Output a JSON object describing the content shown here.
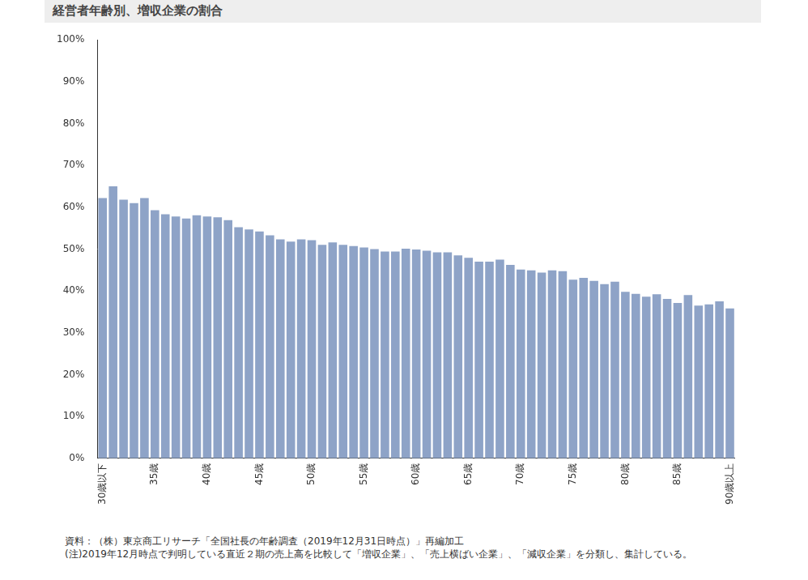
{
  "chart_data": {
    "type": "bar",
    "title": "経営者年齢別、増収企業の割合",
    "categories": [
      "30歳以下",
      null,
      null,
      null,
      null,
      "35歳",
      null,
      null,
      null,
      null,
      "40歳",
      null,
      null,
      null,
      null,
      "45歳",
      null,
      null,
      null,
      null,
      "50歳",
      null,
      null,
      null,
      null,
      "55歳",
      null,
      null,
      null,
      null,
      "60歳",
      null,
      null,
      null,
      null,
      "65歳",
      null,
      null,
      null,
      null,
      "70歳",
      null,
      null,
      null,
      null,
      "75歳",
      null,
      null,
      null,
      null,
      "80歳",
      null,
      null,
      null,
      null,
      "85歳",
      null,
      null,
      null,
      null,
      "90歳以上"
    ],
    "values": [
      62.2,
      65,
      61.8,
      61,
      62.2,
      59.3,
      58.3,
      57.8,
      57.3,
      58.1,
      57.8,
      57.6,
      56.9,
      55.2,
      54.7,
      54.2,
      53.3,
      52.3,
      51.8,
      52.3,
      52.1,
      51,
      51.6,
      51,
      50.7,
      50.4,
      50,
      49.4,
      49.4,
      50.1,
      49.9,
      49.6,
      49.2,
      49.2,
      48.5,
      47.9,
      47,
      47,
      47.5,
      46.2,
      45.1,
      44.9,
      44.4,
      44.9,
      44.7,
      42.7,
      43.1,
      42.4,
      41.6,
      42.2,
      39.8,
      39.3,
      38.6,
      39.2,
      38.1,
      37.1,
      39,
      36.5,
      36.8,
      37.5,
      35.8
    ],
    "color": "#8ea3c7",
    "ylim": [
      0,
      100
    ],
    "yticks": [
      {
        "value": 0,
        "label": "0%"
      },
      {
        "value": 10,
        "label": "10%"
      },
      {
        "value": 20,
        "label": "20%"
      },
      {
        "value": 30,
        "label": "30%"
      },
      {
        "value": 40,
        "label": "40%"
      },
      {
        "value": 50,
        "label": "50%"
      },
      {
        "value": 60,
        "label": "60%"
      },
      {
        "value": 70,
        "label": "70%"
      },
      {
        "value": 80,
        "label": "80%"
      },
      {
        "value": 90,
        "label": "90%"
      },
      {
        "value": 100,
        "label": "100%"
      }
    ],
    "grid": false,
    "annotations": [
      "資料：（株）東京商工リサーチ「全国社長の年齢調査（2019年12月31日時点）」再編加工",
      "(注)2019年12月時点で判明している直近２期の売上高を比較して「増収企業」、「売上横ばい企業」、「減収企業」を分類し、集計している。"
    ]
  }
}
